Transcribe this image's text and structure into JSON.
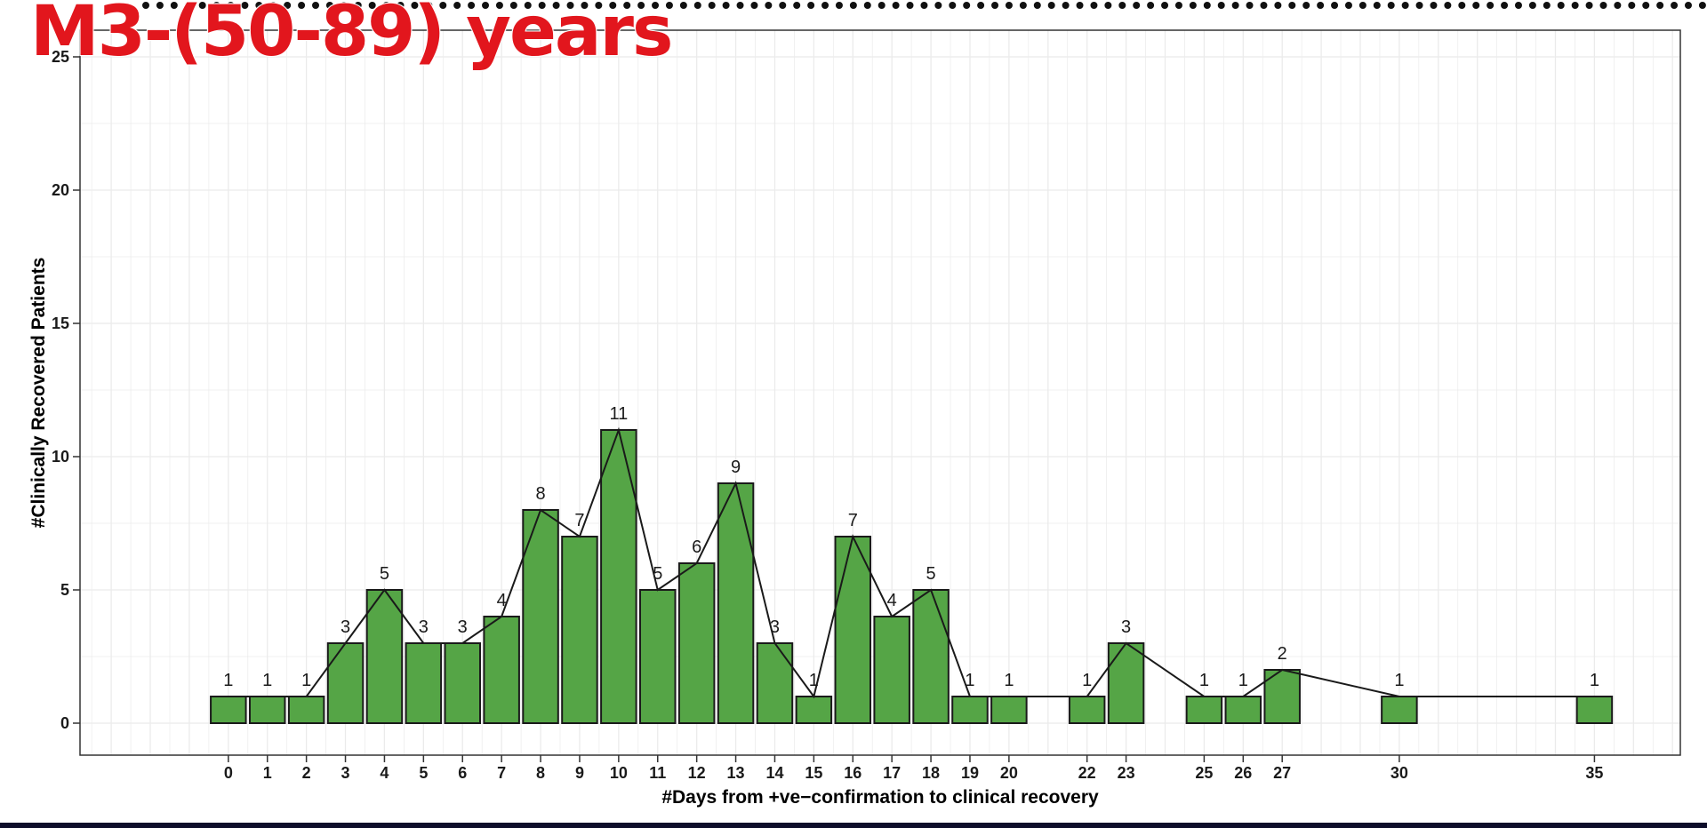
{
  "title": "M3-(50-89) years",
  "colors": {
    "bar_fill": "#55a546",
    "bar_stroke": "#1a1a1a",
    "line": "#1a1a1a",
    "grid": "#ebebeb",
    "panel_border": "#333333",
    "title": "#e2161d"
  },
  "chart_data": {
    "type": "bar",
    "title": "M3-(50-89) years",
    "xlabel": "#Days from +ve−confirmation to clinical recovery",
    "ylabel": "#Clinically Recovered Patients",
    "x": [
      0,
      1,
      2,
      3,
      4,
      5,
      6,
      7,
      8,
      9,
      10,
      11,
      12,
      13,
      14,
      15,
      16,
      17,
      18,
      19,
      20,
      22,
      23,
      25,
      26,
      27,
      30,
      35
    ],
    "values": [
      1,
      1,
      1,
      3,
      5,
      3,
      3,
      4,
      8,
      7,
      11,
      5,
      6,
      9,
      3,
      1,
      7,
      4,
      5,
      1,
      1,
      1,
      3,
      1,
      1,
      2,
      1,
      1
    ],
    "xlim": [
      -3.8,
      37.2
    ],
    "ylim": [
      -1.2,
      26
    ],
    "yticks": [
      0,
      5,
      10,
      15,
      20,
      25
    ],
    "overlay_line": true,
    "data_labels": true,
    "grid": true,
    "legend": "none"
  }
}
